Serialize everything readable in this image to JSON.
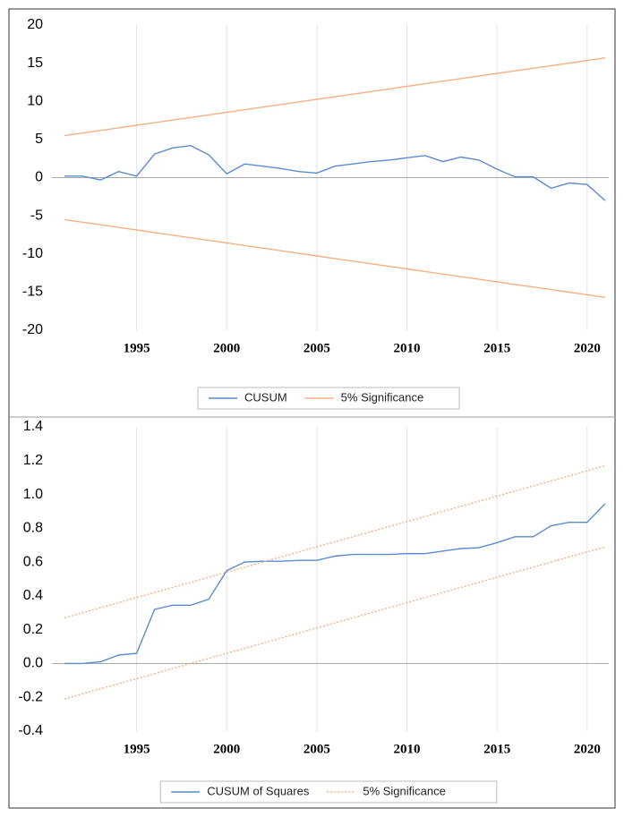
{
  "chart_data": [
    {
      "type": "line",
      "x": [
        1991,
        1992,
        1993,
        1994,
        1995,
        1996,
        1997,
        1998,
        1999,
        2000,
        2001,
        2002,
        2003,
        2004,
        2005,
        2006,
        2007,
        2008,
        2009,
        2010,
        2011,
        2012,
        2013,
        2014,
        2015,
        2016,
        2017,
        2018,
        2019,
        2020,
        2021
      ],
      "xlim": [
        1990.3,
        2021.2
      ],
      "xticks": [
        1995,
        2000,
        2005,
        2010,
        2015,
        2020
      ],
      "ylim": [
        -20,
        20
      ],
      "yticks": [
        -20,
        -15,
        -10,
        -5,
        0,
        5,
        10,
        15,
        20
      ],
      "grid": true,
      "legend": "bottom",
      "series": [
        {
          "name": "CUSUM",
          "color": "#5b8bd0",
          "values": [
            0.2,
            0.2,
            -0.3,
            0.8,
            0.2,
            3.1,
            3.9,
            4.2,
            3.0,
            0.5,
            1.8,
            1.5,
            1.2,
            0.8,
            0.6,
            1.5,
            1.8,
            2.1,
            2.3,
            2.6,
            2.9,
            2.1,
            2.7,
            2.3,
            1.1,
            0.1,
            0.1,
            -1.4,
            -0.7,
            -0.9,
            -3.0
          ]
        },
        {
          "name": "5% Significance",
          "color": "#f4b183",
          "values": [
            5.5,
            5.84,
            6.18,
            6.52,
            6.86,
            7.2,
            7.54,
            7.88,
            8.22,
            8.56,
            8.9,
            9.24,
            9.58,
            9.92,
            10.26,
            10.6,
            10.94,
            11.28,
            11.62,
            11.96,
            12.3,
            12.64,
            12.98,
            13.32,
            13.66,
            14.0,
            14.34,
            14.68,
            15.02,
            15.36,
            15.7
          ]
        },
        {
          "color": "#f4b183",
          "values": [
            -5.5,
            -5.84,
            -6.18,
            -6.52,
            -6.86,
            -7.2,
            -7.54,
            -7.88,
            -8.22,
            -8.56,
            -8.9,
            -9.24,
            -9.58,
            -9.92,
            -10.26,
            -10.6,
            -10.94,
            -11.28,
            -11.62,
            -11.96,
            -12.3,
            -12.64,
            -12.98,
            -13.32,
            -13.66,
            -14.0,
            -14.34,
            -14.68,
            -15.02,
            -15.36,
            -15.7
          ]
        }
      ]
    },
    {
      "type": "line",
      "x": [
        1991,
        1992,
        1993,
        1994,
        1995,
        1996,
        1997,
        1998,
        1999,
        2000,
        2001,
        2002,
        2003,
        2004,
        2005,
        2006,
        2007,
        2008,
        2009,
        2010,
        2011,
        2012,
        2013,
        2014,
        2015,
        2016,
        2017,
        2018,
        2019,
        2020,
        2021
      ],
      "xlim": [
        1990.3,
        2021.2
      ],
      "xticks": [
        1995,
        2000,
        2005,
        2010,
        2015,
        2020
      ],
      "ylim": [
        -0.4,
        1.4
      ],
      "yticks": [
        -0.4,
        -0.2,
        {
          "value": 0,
          "label": "0.0"
        },
        0.2,
        0.4,
        0.6,
        0.8,
        {
          "value": 1,
          "label": "1.0"
        },
        1.2,
        1.4
      ],
      "grid": true,
      "legend": "bottom",
      "series": [
        {
          "name": "CUSUM of Squares",
          "color": "#5b8bd0",
          "values": [
            0,
            0,
            0.01,
            0.05,
            0.06,
            0.32,
            0.345,
            0.345,
            0.38,
            0.55,
            0.6,
            0.605,
            0.605,
            0.61,
            0.61,
            0.635,
            0.645,
            0.645,
            0.645,
            0.65,
            0.65,
            0.665,
            0.68,
            0.685,
            0.715,
            0.75,
            0.75,
            0.815,
            0.835,
            0.835,
            0.945
          ]
        },
        {
          "name": "5% Significance",
          "color": "#f4b183",
          "dash": true,
          "values": [
            0.27,
            0.3,
            0.33,
            0.36,
            0.39,
            0.42,
            0.45,
            0.48,
            0.51,
            0.54,
            0.57,
            0.6,
            0.63,
            0.66,
            0.69,
            0.72,
            0.75,
            0.78,
            0.81,
            0.84,
            0.87,
            0.9,
            0.93,
            0.96,
            0.99,
            1.02,
            1.05,
            1.08,
            1.11,
            1.14,
            1.17
          ]
        },
        {
          "color": "#f4b183",
          "dash": true,
          "values": [
            -0.21,
            -0.18,
            -0.15,
            -0.12,
            -0.09,
            -0.06,
            -0.03,
            0,
            0.03,
            0.06,
            0.09,
            0.12,
            0.15,
            0.18,
            0.21,
            0.24,
            0.27,
            0.3,
            0.33,
            0.36,
            0.39,
            0.42,
            0.45,
            0.48,
            0.51,
            0.54,
            0.57,
            0.6,
            0.63,
            0.66,
            0.69
          ]
        }
      ]
    }
  ]
}
